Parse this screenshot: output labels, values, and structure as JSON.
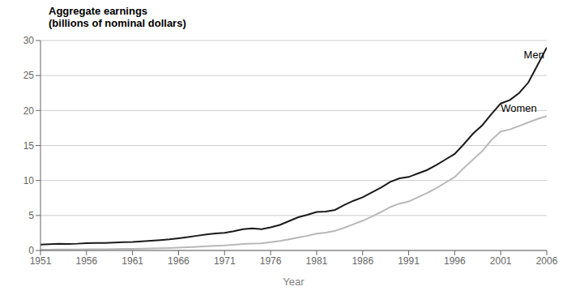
{
  "chart_data": {
    "type": "line",
    "title": "Aggregate earnings",
    "subtitle": "(billions of nominal dollars)",
    "x_label": "Year",
    "xlim": [
      1951,
      2006
    ],
    "ylim": [
      0,
      30
    ],
    "xticks": [
      1951,
      1956,
      1961,
      1966,
      1971,
      1976,
      1981,
      1986,
      1991,
      1996,
      2001,
      2006
    ],
    "yticks": [
      0,
      5,
      10,
      15,
      20,
      25,
      30
    ],
    "grid": "y",
    "x": [
      1951,
      1952,
      1953,
      1954,
      1955,
      1956,
      1957,
      1958,
      1959,
      1960,
      1961,
      1962,
      1963,
      1964,
      1965,
      1966,
      1967,
      1968,
      1969,
      1970,
      1971,
      1972,
      1973,
      1974,
      1975,
      1976,
      1977,
      1978,
      1979,
      1980,
      1981,
      1982,
      1983,
      1984,
      1985,
      1986,
      1987,
      1988,
      1989,
      1990,
      1991,
      1992,
      1993,
      1994,
      1995,
      1996,
      1997,
      1998,
      1999,
      2000,
      2001,
      2002,
      2003,
      2004,
      2005,
      2006
    ],
    "series": [
      {
        "name": "Men",
        "color": "#1a1a1a",
        "values": [
          0.85,
          0.9,
          0.95,
          0.92,
          0.97,
          1.05,
          1.08,
          1.07,
          1.12,
          1.18,
          1.22,
          1.3,
          1.38,
          1.48,
          1.6,
          1.75,
          1.9,
          2.1,
          2.3,
          2.42,
          2.52,
          2.75,
          3.05,
          3.15,
          3.05,
          3.3,
          3.65,
          4.2,
          4.75,
          5.1,
          5.5,
          5.55,
          5.8,
          6.5,
          7.1,
          7.6,
          8.3,
          9.0,
          9.8,
          10.3,
          10.5,
          11.0,
          11.5,
          12.2,
          13.0,
          13.8,
          15.2,
          16.7,
          17.9,
          19.5,
          21.0,
          21.5,
          22.5,
          24.0,
          26.5,
          29.0
        ]
      },
      {
        "name": "Women",
        "color": "#b8b8b8",
        "values": [
          0.12,
          0.13,
          0.14,
          0.14,
          0.15,
          0.17,
          0.18,
          0.18,
          0.2,
          0.22,
          0.24,
          0.26,
          0.29,
          0.32,
          0.36,
          0.41,
          0.46,
          0.53,
          0.6,
          0.67,
          0.72,
          0.82,
          0.92,
          0.98,
          1.02,
          1.18,
          1.35,
          1.6,
          1.85,
          2.1,
          2.4,
          2.55,
          2.8,
          3.25,
          3.75,
          4.25,
          4.85,
          5.5,
          6.2,
          6.7,
          7.0,
          7.6,
          8.2,
          8.9,
          9.7,
          10.5,
          11.8,
          13.0,
          14.2,
          15.8,
          17.0,
          17.3,
          17.8,
          18.3,
          18.8,
          19.2
        ]
      }
    ],
    "annotations": [
      {
        "text": "Men",
        "x": 2003.5,
        "y": 27.5
      },
      {
        "text": "Women",
        "x": 2001.0,
        "y": 19.8
      }
    ]
  }
}
